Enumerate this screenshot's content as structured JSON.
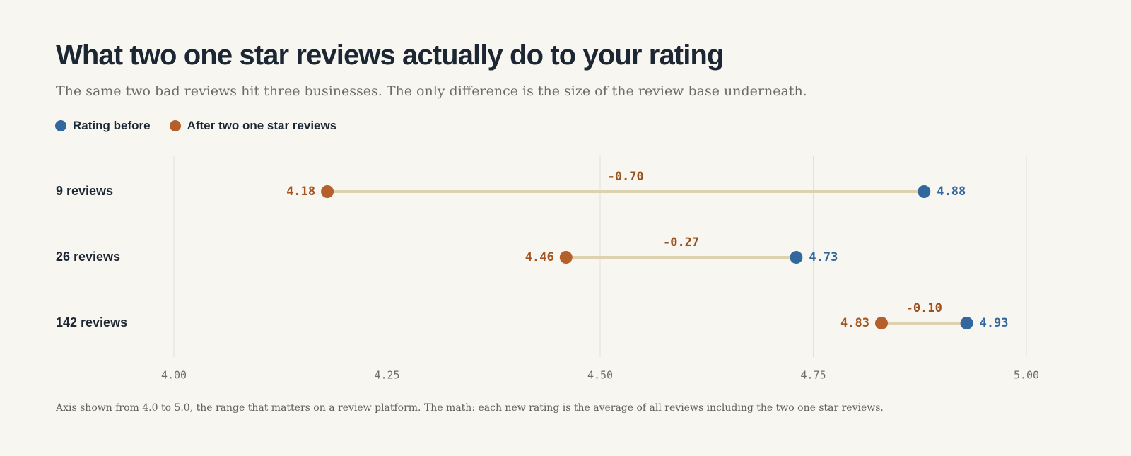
{
  "header": {
    "title": "What two one star reviews actually do to your rating",
    "subtitle": "The same two bad reviews hit three businesses. The only difference is the size of the review base underneath."
  },
  "legend": {
    "before_label": "Rating before",
    "after_label": "After two one star reviews"
  },
  "colors": {
    "before": "#33689f",
    "after": "#b5602c",
    "after_text": "#a3541f",
    "connector": "#ddd2ad",
    "grid": "#e3e0d8",
    "diff_text": "#9a5220"
  },
  "chart_data": {
    "type": "dumbbell",
    "xlim": [
      4.0,
      5.0
    ],
    "x_ticks": [
      4.0,
      4.25,
      4.5,
      4.75,
      5.0
    ],
    "x_tick_labels": [
      "4.00",
      "4.25",
      "4.50",
      "4.75",
      "5.00"
    ],
    "grid": true,
    "legend_position": "top-left",
    "series": [
      {
        "name": "Rating before",
        "key": "before"
      },
      {
        "name": "After two one star reviews",
        "key": "after"
      }
    ],
    "rows": [
      {
        "label": "9 reviews",
        "before": 4.88,
        "after": 4.18,
        "before_label": "4.88",
        "after_label": "4.18",
        "diff_label": "-0.70"
      },
      {
        "label": "26 reviews",
        "before": 4.73,
        "after": 4.46,
        "before_label": "4.73",
        "after_label": "4.46",
        "diff_label": "-0.27"
      },
      {
        "label": "142 reviews",
        "before": 4.93,
        "after": 4.83,
        "before_label": "4.93",
        "after_label": "4.83",
        "diff_label": "-0.10"
      }
    ]
  },
  "footnote": "Axis shown from 4.0 to 5.0, the range that matters on a review platform. The math: each new rating is the average of all reviews including the two one star reviews."
}
